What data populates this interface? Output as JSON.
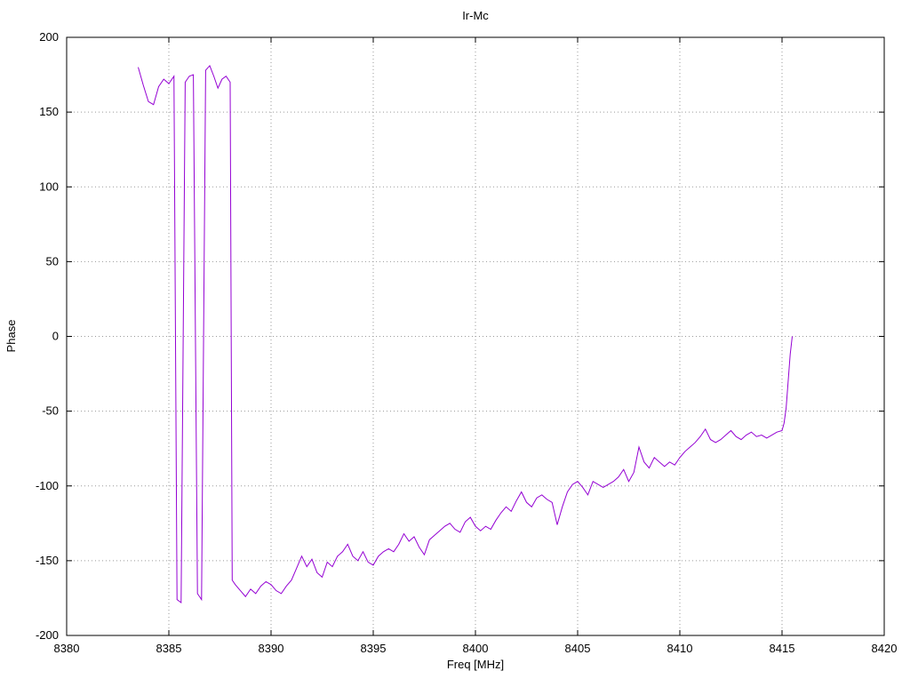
{
  "window": {
    "background": "#ffffff"
  },
  "chart_data": {
    "type": "line",
    "title": "Ir-Mc",
    "xlabel": "Freq [MHz]",
    "ylabel": "Phase",
    "xlim": [
      8380,
      8420
    ],
    "ylim": [
      -200,
      200
    ],
    "x_ticks": [
      8380,
      8385,
      8390,
      8395,
      8400,
      8405,
      8410,
      8415,
      8420
    ],
    "y_ticks": [
      -200,
      -150,
      -100,
      -50,
      0,
      50,
      100,
      150,
      200
    ],
    "grid": true,
    "legend": "none",
    "line_color": "#9400d3",
    "grid_color": "#9a9a9a",
    "axis_color": "#000000",
    "series": [
      {
        "name": "Ir-Mc",
        "x": [
          8383.5,
          8383.75,
          8384.0,
          8384.25,
          8384.5,
          8384.75,
          8385.0,
          8385.25,
          8385.4,
          8385.6,
          8385.8,
          8386.0,
          8386.2,
          8386.4,
          8386.6,
          8386.8,
          8387.0,
          8387.2,
          8387.4,
          8387.6,
          8387.8,
          8388.0,
          8388.1,
          8388.25,
          8388.5,
          8388.75,
          8389.0,
          8389.25,
          8389.5,
          8389.75,
          8390.0,
          8390.25,
          8390.5,
          8390.75,
          8391.0,
          8391.25,
          8391.5,
          8391.75,
          8392.0,
          8392.25,
          8392.5,
          8392.75,
          8393.0,
          8393.25,
          8393.5,
          8393.75,
          8394.0,
          8394.25,
          8394.5,
          8394.75,
          8395.0,
          8395.25,
          8395.5,
          8395.75,
          8396.0,
          8396.25,
          8396.5,
          8396.75,
          8397.0,
          8397.25,
          8397.5,
          8397.75,
          8398.0,
          8398.25,
          8398.5,
          8398.75,
          8399.0,
          8399.25,
          8399.5,
          8399.75,
          8400.0,
          8400.25,
          8400.5,
          8400.75,
          8401.0,
          8401.25,
          8401.5,
          8401.75,
          8402.0,
          8402.25,
          8402.5,
          8402.75,
          8403.0,
          8403.25,
          8403.5,
          8403.75,
          8404.0,
          8404.25,
          8404.5,
          8404.75,
          8405.0,
          8405.25,
          8405.5,
          8405.75,
          8406.0,
          8406.25,
          8406.5,
          8406.75,
          8407.0,
          8407.25,
          8407.5,
          8407.75,
          8408.0,
          8408.25,
          8408.5,
          8408.75,
          8409.0,
          8409.25,
          8409.5,
          8409.75,
          8410.0,
          8410.25,
          8410.5,
          8410.75,
          8411.0,
          8411.25,
          8411.5,
          8411.75,
          8412.0,
          8412.25,
          8412.5,
          8412.75,
          8413.0,
          8413.25,
          8413.5,
          8413.75,
          8414.0,
          8414.25,
          8414.5,
          8414.75,
          8415.0,
          8415.1,
          8415.2,
          8415.3,
          8415.4,
          8415.5
        ],
        "y": [
          180,
          168,
          157,
          155,
          167,
          172,
          169,
          174,
          -176,
          -178,
          170,
          174,
          175,
          -172,
          -176,
          178,
          181,
          174,
          166,
          172,
          174,
          170,
          -163,
          -166,
          -170,
          -174,
          -169,
          -172,
          -167,
          -164,
          -166,
          -170,
          -172,
          -167,
          -163,
          -155,
          -147,
          -154,
          -149,
          -158,
          -161,
          -151,
          -154,
          -147,
          -144,
          -139,
          -147,
          -150,
          -144,
          -151,
          -153,
          -147,
          -144,
          -142,
          -144,
          -139,
          -132,
          -137,
          -134,
          -141,
          -146,
          -136,
          -133,
          -130,
          -127,
          -125,
          -129,
          -131,
          -124,
          -121,
          -127,
          -130,
          -127,
          -129,
          -123,
          -118,
          -114,
          -117,
          -110,
          -104,
          -111,
          -114,
          -108,
          -106,
          -109,
          -111,
          -126,
          -114,
          -104,
          -99,
          -97,
          -101,
          -106,
          -97,
          -99,
          -101,
          -99,
          -97,
          -94,
          -89,
          -97,
          -91,
          -74,
          -84,
          -88,
          -81,
          -84,
          -87,
          -84,
          -86,
          -81,
          -77,
          -74,
          -71,
          -67,
          -62,
          -69,
          -71,
          -69,
          -66,
          -63,
          -67,
          -69,
          -66,
          -64,
          -67,
          -66,
          -68,
          -66,
          -64,
          -63,
          -58,
          -48,
          -30,
          -12,
          0
        ]
      }
    ]
  }
}
